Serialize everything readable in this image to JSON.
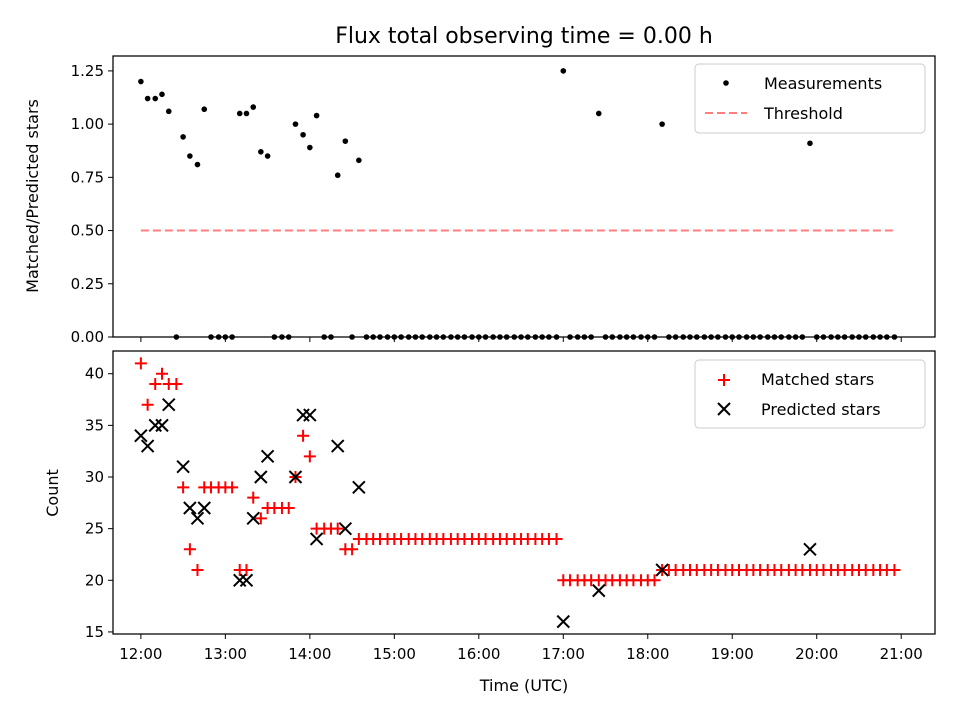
{
  "chart_data": [
    {
      "type": "scatter",
      "title": "Flux total observing time = 0.00 h",
      "ylabel": "Matched/Predicted stars",
      "xlabel": "",
      "xlim": [
        11.67,
        21.4
      ],
      "ylim": [
        0,
        1.32
      ],
      "yticks": [
        0,
        0.25,
        0.5,
        0.75,
        1.0,
        1.25
      ],
      "ytick_labels": [
        "0.00",
        "0.25",
        "0.50",
        "0.75",
        "1.00",
        "1.25"
      ],
      "legend_position": "top-right",
      "series": [
        {
          "name": "Measurements",
          "color": "#000000",
          "marker": "dot",
          "points": [
            [
              12.0,
              1.2
            ],
            [
              12.08,
              1.12
            ],
            [
              12.17,
              1.12
            ],
            [
              12.25,
              1.14
            ],
            [
              12.33,
              1.06
            ],
            [
              12.42,
              0.0
            ],
            [
              12.5,
              0.94
            ],
            [
              12.58,
              0.85
            ],
            [
              12.67,
              0.81
            ],
            [
              12.75,
              1.07
            ],
            [
              12.83,
              0.0
            ],
            [
              12.92,
              0.0
            ],
            [
              13.0,
              0.0
            ],
            [
              13.08,
              0.0
            ],
            [
              13.17,
              1.05
            ],
            [
              13.25,
              1.05
            ],
            [
              13.33,
              1.08
            ],
            [
              13.42,
              0.87
            ],
            [
              13.5,
              0.85
            ],
            [
              13.58,
              0.0
            ],
            [
              13.67,
              0.0
            ],
            [
              13.75,
              0.0
            ],
            [
              13.83,
              1.0
            ],
            [
              13.92,
              0.95
            ],
            [
              14.0,
              0.89
            ],
            [
              14.08,
              1.04
            ],
            [
              14.17,
              0.0
            ],
            [
              14.25,
              0.0
            ],
            [
              14.33,
              0.76
            ],
            [
              14.42,
              0.92
            ],
            [
              14.5,
              0.0
            ],
            [
              14.58,
              0.83
            ],
            [
              14.67,
              0.0
            ],
            [
              14.75,
              0.0
            ],
            [
              14.83,
              0.0
            ],
            [
              14.92,
              0.0
            ],
            [
              15.0,
              0.0
            ],
            [
              15.08,
              0.0
            ],
            [
              15.17,
              0.0
            ],
            [
              15.25,
              0.0
            ],
            [
              15.33,
              0.0
            ],
            [
              15.42,
              0.0
            ],
            [
              15.5,
              0.0
            ],
            [
              15.58,
              0.0
            ],
            [
              15.67,
              0.0
            ],
            [
              15.75,
              0.0
            ],
            [
              15.83,
              0.0
            ],
            [
              15.92,
              0.0
            ],
            [
              16.0,
              0.0
            ],
            [
              16.08,
              0.0
            ],
            [
              16.17,
              0.0
            ],
            [
              16.25,
              0.0
            ],
            [
              16.33,
              0.0
            ],
            [
              16.42,
              0.0
            ],
            [
              16.5,
              0.0
            ],
            [
              16.58,
              0.0
            ],
            [
              16.67,
              0.0
            ],
            [
              16.75,
              0.0
            ],
            [
              16.83,
              0.0
            ],
            [
              16.92,
              0.0
            ],
            [
              17.0,
              1.25
            ],
            [
              17.08,
              0.0
            ],
            [
              17.17,
              0.0
            ],
            [
              17.25,
              0.0
            ],
            [
              17.33,
              0.0
            ],
            [
              17.42,
              1.05
            ],
            [
              17.5,
              0.0
            ],
            [
              17.58,
              0.0
            ],
            [
              17.67,
              0.0
            ],
            [
              17.75,
              0.0
            ],
            [
              17.83,
              0.0
            ],
            [
              17.92,
              0.0
            ],
            [
              18.0,
              0.0
            ],
            [
              18.08,
              0.0
            ],
            [
              18.17,
              1.0
            ],
            [
              18.25,
              0.0
            ],
            [
              18.33,
              0.0
            ],
            [
              18.42,
              0.0
            ],
            [
              18.5,
              0.0
            ],
            [
              18.58,
              0.0
            ],
            [
              18.67,
              0.0
            ],
            [
              18.75,
              0.0
            ],
            [
              18.83,
              0.0
            ],
            [
              18.92,
              0.0
            ],
            [
              19.0,
              0.0
            ],
            [
              19.08,
              0.0
            ],
            [
              19.17,
              0.0
            ],
            [
              19.25,
              0.0
            ],
            [
              19.33,
              0.0
            ],
            [
              19.42,
              0.0
            ],
            [
              19.5,
              0.0
            ],
            [
              19.58,
              0.0
            ],
            [
              19.67,
              0.0
            ],
            [
              19.75,
              0.0
            ],
            [
              19.83,
              0.0
            ],
            [
              19.92,
              0.91
            ],
            [
              20.0,
              0.0
            ],
            [
              20.08,
              0.0
            ],
            [
              20.17,
              0.0
            ],
            [
              20.25,
              0.0
            ],
            [
              20.33,
              0.0
            ],
            [
              20.42,
              0.0
            ],
            [
              20.5,
              0.0
            ],
            [
              20.58,
              0.0
            ],
            [
              20.67,
              0.0
            ],
            [
              20.75,
              0.0
            ],
            [
              20.83,
              0.0
            ],
            [
              20.92,
              0.0
            ]
          ]
        },
        {
          "name": "Threshold",
          "color": "#ff7f7f",
          "marker": "dashed-line",
          "points": [
            [
              12.0,
              0.5
            ],
            [
              20.92,
              0.5
            ]
          ]
        }
      ]
    },
    {
      "type": "scatter",
      "title": "",
      "ylabel": "Count",
      "xlabel": "Time (UTC)",
      "xlim": [
        11.67,
        21.4
      ],
      "ylim": [
        14.8,
        42.2
      ],
      "yticks": [
        15,
        20,
        25,
        30,
        35,
        40
      ],
      "xticks": [
        12,
        13,
        14,
        15,
        16,
        17,
        18,
        19,
        20,
        21
      ],
      "xtick_labels": [
        "12:00",
        "13:00",
        "14:00",
        "15:00",
        "16:00",
        "17:00",
        "18:00",
        "19:00",
        "20:00",
        "21:00"
      ],
      "legend_position": "top-right",
      "series": [
        {
          "name": "Matched stars",
          "color": "#ff0000",
          "marker": "plus",
          "points": [
            [
              12.0,
              41
            ],
            [
              12.08,
              37
            ],
            [
              12.17,
              39
            ],
            [
              12.25,
              40
            ],
            [
              12.33,
              39
            ],
            [
              12.42,
              39
            ],
            [
              12.5,
              29
            ],
            [
              12.58,
              23
            ],
            [
              12.67,
              21
            ],
            [
              12.75,
              29
            ],
            [
              12.83,
              29
            ],
            [
              12.92,
              29
            ],
            [
              13.0,
              29
            ],
            [
              13.08,
              29
            ],
            [
              13.17,
              21
            ],
            [
              13.25,
              21
            ],
            [
              13.33,
              28
            ],
            [
              13.42,
              26
            ],
            [
              13.5,
              27
            ],
            [
              13.58,
              27
            ],
            [
              13.67,
              27
            ],
            [
              13.75,
              27
            ],
            [
              13.83,
              30
            ],
            [
              13.92,
              34
            ],
            [
              14.0,
              32
            ],
            [
              14.08,
              25
            ],
            [
              14.17,
              25
            ],
            [
              14.25,
              25
            ],
            [
              14.33,
              25
            ],
            [
              14.42,
              23
            ],
            [
              14.5,
              23
            ],
            [
              14.58,
              24
            ],
            [
              14.67,
              24
            ],
            [
              14.75,
              24
            ],
            [
              14.83,
              24
            ],
            [
              14.92,
              24
            ],
            [
              15.0,
              24
            ],
            [
              15.08,
              24
            ],
            [
              15.17,
              24
            ],
            [
              15.25,
              24
            ],
            [
              15.33,
              24
            ],
            [
              15.42,
              24
            ],
            [
              15.5,
              24
            ],
            [
              15.58,
              24
            ],
            [
              15.67,
              24
            ],
            [
              15.75,
              24
            ],
            [
              15.83,
              24
            ],
            [
              15.92,
              24
            ],
            [
              16.0,
              24
            ],
            [
              16.08,
              24
            ],
            [
              16.17,
              24
            ],
            [
              16.25,
              24
            ],
            [
              16.33,
              24
            ],
            [
              16.42,
              24
            ],
            [
              16.5,
              24
            ],
            [
              16.58,
              24
            ],
            [
              16.67,
              24
            ],
            [
              16.75,
              24
            ],
            [
              16.83,
              24
            ],
            [
              16.92,
              24
            ],
            [
              17.0,
              20
            ],
            [
              17.08,
              20
            ],
            [
              17.17,
              20
            ],
            [
              17.25,
              20
            ],
            [
              17.33,
              20
            ],
            [
              17.42,
              20
            ],
            [
              17.5,
              20
            ],
            [
              17.58,
              20
            ],
            [
              17.67,
              20
            ],
            [
              17.75,
              20
            ],
            [
              17.83,
              20
            ],
            [
              17.92,
              20
            ],
            [
              18.0,
              20
            ],
            [
              18.08,
              20
            ],
            [
              18.17,
              21
            ],
            [
              18.25,
              21
            ],
            [
              18.33,
              21
            ],
            [
              18.42,
              21
            ],
            [
              18.5,
              21
            ],
            [
              18.58,
              21
            ],
            [
              18.67,
              21
            ],
            [
              18.75,
              21
            ],
            [
              18.83,
              21
            ],
            [
              18.92,
              21
            ],
            [
              19.0,
              21
            ],
            [
              19.08,
              21
            ],
            [
              19.17,
              21
            ],
            [
              19.25,
              21
            ],
            [
              19.33,
              21
            ],
            [
              19.42,
              21
            ],
            [
              19.5,
              21
            ],
            [
              19.58,
              21
            ],
            [
              19.67,
              21
            ],
            [
              19.75,
              21
            ],
            [
              19.83,
              21
            ],
            [
              19.92,
              21
            ],
            [
              20.0,
              21
            ],
            [
              20.08,
              21
            ],
            [
              20.17,
              21
            ],
            [
              20.25,
              21
            ],
            [
              20.33,
              21
            ],
            [
              20.42,
              21
            ],
            [
              20.5,
              21
            ],
            [
              20.58,
              21
            ],
            [
              20.67,
              21
            ],
            [
              20.75,
              21
            ],
            [
              20.83,
              21
            ],
            [
              20.92,
              21
            ]
          ]
        },
        {
          "name": "Predicted stars",
          "color": "#000000",
          "marker": "x",
          "points": [
            [
              12.0,
              34
            ],
            [
              12.08,
              33
            ],
            [
              12.17,
              35
            ],
            [
              12.25,
              35
            ],
            [
              12.33,
              37
            ],
            [
              12.5,
              31
            ],
            [
              12.58,
              27
            ],
            [
              12.67,
              26
            ],
            [
              12.75,
              27
            ],
            [
              13.17,
              20
            ],
            [
              13.25,
              20
            ],
            [
              13.33,
              26
            ],
            [
              13.42,
              30
            ],
            [
              13.5,
              32
            ],
            [
              13.83,
              30
            ],
            [
              13.92,
              36
            ],
            [
              14.0,
              36
            ],
            [
              14.08,
              24
            ],
            [
              14.33,
              33
            ],
            [
              14.42,
              25
            ],
            [
              14.58,
              29
            ],
            [
              17.0,
              16
            ],
            [
              17.42,
              19
            ],
            [
              18.17,
              21
            ],
            [
              19.92,
              23
            ]
          ]
        }
      ]
    }
  ]
}
